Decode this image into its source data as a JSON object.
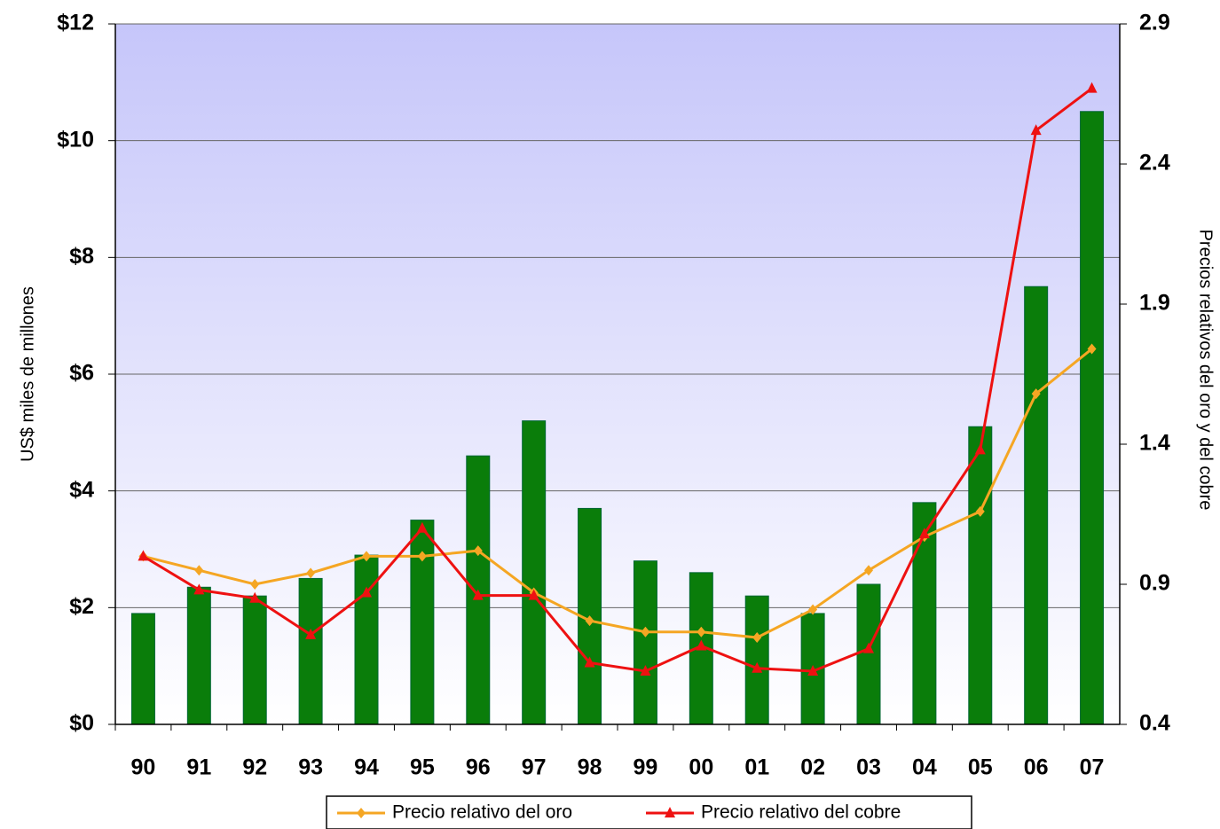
{
  "chart_data": {
    "type": "bar_line",
    "y_label": "US$ miles de millones",
    "y2_label": "Precios relativos del oro y del cobre",
    "categories": [
      "90",
      "91",
      "92",
      "93",
      "94",
      "95",
      "96",
      "97",
      "98",
      "99",
      "00",
      "01",
      "02",
      "03",
      "04",
      "05",
      "06",
      "07"
    ],
    "values": [
      1.9,
      2.35,
      2.2,
      2.5,
      2.9,
      3.5,
      4.6,
      5.2,
      3.7,
      2.8,
      2.6,
      2.2,
      1.9,
      2.4,
      3.8,
      5.1,
      7.5,
      10.5
    ],
    "color": "#0a7d0a",
    "series": [
      {
        "name": "Precio relativo del oro",
        "color": "#f5a623",
        "axis": "y2",
        "marker": "diamond",
        "values": [
          1.0,
          0.95,
          0.9,
          0.94,
          1.0,
          1.0,
          1.02,
          0.87,
          0.77,
          0.73,
          0.73,
          0.71,
          0.81,
          0.95,
          1.07,
          1.16,
          1.58,
          1.74
        ]
      },
      {
        "name": "Precio relativo del cobre",
        "color": "#ee1111",
        "axis": "y2",
        "marker": "triangle",
        "values": [
          1.0,
          0.88,
          0.85,
          0.72,
          0.87,
          1.1,
          0.86,
          0.86,
          0.62,
          0.59,
          0.68,
          0.6,
          0.59,
          0.67,
          1.08,
          1.38,
          2.52,
          2.67
        ]
      }
    ],
    "ylim": [
      0,
      12
    ],
    "yticks": [
      {
        "value": 0,
        "label": "$0"
      },
      {
        "value": 2,
        "label": "$2"
      },
      {
        "value": 4,
        "label": "$4"
      },
      {
        "value": 6,
        "label": "$6"
      },
      {
        "value": 8,
        "label": "$8"
      },
      {
        "value": 10,
        "label": "$10"
      },
      {
        "value": 12,
        "label": "$12"
      }
    ],
    "y2lim": [
      0.4,
      2.9
    ],
    "y2ticks": [
      0.4,
      0.9,
      1.4,
      1.9,
      2.4,
      2.9
    ],
    "grid": true,
    "legend": "bottom"
  }
}
